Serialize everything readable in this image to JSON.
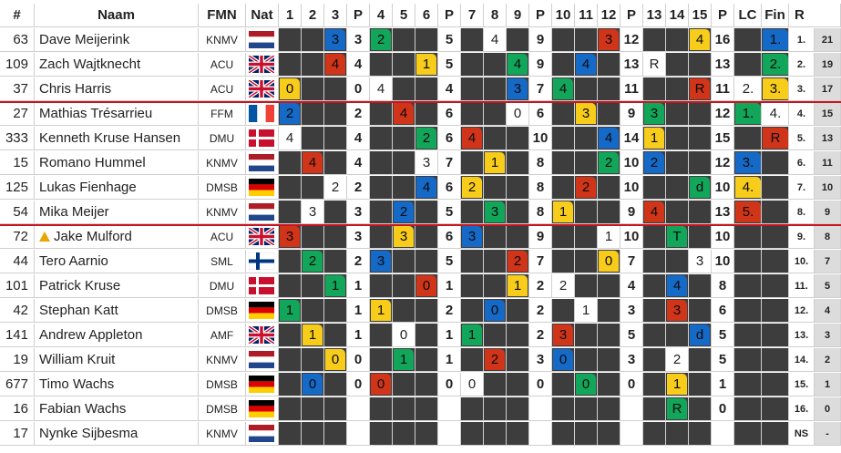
{
  "headers": {
    "num": "#",
    "name": "Naam",
    "fmn": "FMN",
    "nat": "Nat",
    "h1": "1",
    "h2": "2",
    "h3": "3",
    "p1": "P",
    "h4": "4",
    "h5": "5",
    "h6": "6",
    "p2": "P",
    "h7": "7",
    "h8": "8",
    "h9": "9",
    "p3": "P",
    "h10": "10",
    "h11": "11",
    "h12": "12",
    "p4": "P",
    "h13": "13",
    "h14": "14",
    "h15": "15",
    "p5": "P",
    "lc": "LC",
    "fin": "Fin",
    "rank": "R"
  },
  "colors": {
    "blue": "#1569c7",
    "green": "#12a65a",
    "yellow": "#f8cc1b",
    "red": "#d0351a",
    "dark": "#3d3d3d",
    "separator": "#c8141e"
  },
  "rows": [
    {
      "num": "63",
      "name": "Dave Meijerink",
      "fmn": "KNMV",
      "nat": "nl",
      "heats": [
        null,
        null,
        [
          "3",
          "blue"
        ],
        "3",
        [
          "2",
          "green"
        ],
        null,
        null,
        "5",
        null,
        [
          "4",
          "white"
        ],
        null,
        "9",
        null,
        null,
        [
          "3",
          "red"
        ],
        "12",
        null,
        null,
        [
          "4",
          "yellow"
        ],
        "16"
      ],
      "lc": [
        "",
        "dark"
      ],
      "fin": [
        "1.",
        "blue"
      ],
      "place": "1.",
      "pts": "21"
    },
    {
      "num": "109",
      "name": "Zach Wajtknecht",
      "fmn": "ACU",
      "nat": "gb",
      "heats": [
        null,
        null,
        [
          "4",
          "red"
        ],
        "4",
        null,
        null,
        [
          "1",
          "yellow"
        ],
        "5",
        null,
        null,
        [
          "4",
          "green"
        ],
        "9",
        null,
        [
          "4",
          "blue"
        ],
        null,
        "13",
        [
          "R",
          "white"
        ],
        null,
        null,
        "13"
      ],
      "lc": [
        "",
        "dark"
      ],
      "fin": [
        "2.",
        "green"
      ],
      "place": "2.",
      "pts": "19"
    },
    {
      "num": "37",
      "name": "Chris Harris",
      "fmn": "ACU",
      "nat": "gb",
      "heats": [
        [
          "0",
          "yellow"
        ],
        null,
        null,
        "0",
        [
          "4",
          "white"
        ],
        null,
        null,
        "4",
        null,
        null,
        [
          "3",
          "blue"
        ],
        "7",
        [
          "4",
          "green"
        ],
        null,
        null,
        "11",
        null,
        null,
        [
          "R",
          "red"
        ],
        "11"
      ],
      "lc": [
        "2.",
        "white"
      ],
      "fin": [
        "3.",
        "yellow"
      ],
      "place": "3.",
      "pts": "17"
    },
    {
      "num": "27",
      "name": "Mathias Trésarrieu",
      "fmn": "FFM",
      "nat": "fr",
      "heats": [
        [
          "2",
          "blue"
        ],
        null,
        null,
        "2",
        null,
        [
          "4",
          "red"
        ],
        null,
        "6",
        null,
        null,
        [
          "0",
          "white"
        ],
        "6",
        null,
        [
          "3",
          "yellow"
        ],
        null,
        "9",
        [
          "3",
          "green"
        ],
        null,
        null,
        "12"
      ],
      "lc": [
        "1.",
        "green"
      ],
      "fin": [
        "4.",
        "white"
      ],
      "place": "4.",
      "pts": "15"
    },
    {
      "num": "333",
      "name": "Kenneth Kruse Hansen",
      "fmn": "DMU",
      "nat": "dk",
      "heats": [
        [
          "4",
          "white"
        ],
        null,
        null,
        "4",
        null,
        null,
        [
          "2",
          "green"
        ],
        "6",
        [
          "4",
          "red"
        ],
        null,
        null,
        "10",
        null,
        null,
        [
          "4",
          "blue"
        ],
        "14",
        [
          "1",
          "yellow"
        ],
        null,
        null,
        "15"
      ],
      "lc": [
        "",
        "dark"
      ],
      "fin": [
        "R",
        "red"
      ],
      "place": "5.",
      "pts": "13"
    },
    {
      "num": "15",
      "name": "Romano Hummel",
      "fmn": "KNMV",
      "nat": "nl",
      "heats": [
        null,
        [
          "4",
          "red"
        ],
        null,
        "4",
        null,
        null,
        [
          "3",
          "white"
        ],
        "7",
        null,
        [
          "1",
          "yellow"
        ],
        null,
        "8",
        null,
        null,
        [
          "2",
          "green"
        ],
        "10",
        [
          "2",
          "blue"
        ],
        null,
        null,
        "12"
      ],
      "lc": [
        "3.",
        "blue"
      ],
      "fin": [
        "",
        "dark"
      ],
      "place": "6.",
      "pts": "11"
    },
    {
      "num": "125",
      "name": "Lukas Fienhage",
      "fmn": "DMSB",
      "nat": "de",
      "heats": [
        null,
        null,
        [
          "2",
          "white"
        ],
        "2",
        null,
        null,
        [
          "4",
          "blue"
        ],
        "6",
        [
          "2",
          "yellow"
        ],
        null,
        null,
        "8",
        null,
        [
          "2",
          "red"
        ],
        null,
        "10",
        null,
        null,
        [
          "d",
          "green"
        ],
        "10"
      ],
      "lc": [
        "4.",
        "yellow"
      ],
      "fin": [
        "",
        "dark"
      ],
      "place": "7.",
      "pts": "10"
    },
    {
      "num": "54",
      "name": "Mika Meijer",
      "fmn": "KNMV",
      "nat": "nl",
      "heats": [
        null,
        [
          "3",
          "white"
        ],
        null,
        "3",
        null,
        [
          "2",
          "blue"
        ],
        null,
        "5",
        null,
        [
          "3",
          "green"
        ],
        null,
        "8",
        [
          "1",
          "yellow"
        ],
        null,
        null,
        "9",
        [
          "4",
          "red"
        ],
        null,
        null,
        "13"
      ],
      "lc": [
        "5.",
        "red"
      ],
      "fin": [
        "",
        "dark"
      ],
      "place": "8.",
      "pts": "9"
    },
    {
      "num": "72",
      "name": "Jake Mulford",
      "warn": true,
      "fmn": "ACU",
      "nat": "gb",
      "heats": [
        [
          "3",
          "red"
        ],
        null,
        null,
        "3",
        null,
        [
          "3",
          "yellow"
        ],
        null,
        "6",
        [
          "3",
          "blue"
        ],
        null,
        null,
        "9",
        null,
        null,
        [
          "1",
          "white"
        ],
        "10",
        null,
        [
          "T",
          "green"
        ],
        null,
        "10"
      ],
      "lc": [
        "",
        "dark"
      ],
      "fin": [
        "",
        "dark"
      ],
      "place": "9.",
      "pts": "8"
    },
    {
      "num": "44",
      "name": "Tero Aarnio",
      "fmn": "SML",
      "nat": "fi",
      "heats": [
        null,
        [
          "2",
          "green"
        ],
        null,
        "2",
        [
          "3",
          "blue"
        ],
        null,
        null,
        "5",
        null,
        null,
        [
          "2",
          "red"
        ],
        "7",
        null,
        null,
        [
          "0",
          "yellow"
        ],
        "7",
        null,
        null,
        [
          "3",
          "white"
        ],
        "10"
      ],
      "lc": [
        "",
        "dark"
      ],
      "fin": [
        "",
        "dark"
      ],
      "place": "10.",
      "pts": "7"
    },
    {
      "num": "101",
      "name": "Patrick Kruse",
      "fmn": "DMU",
      "nat": "dk",
      "heats": [
        null,
        null,
        [
          "1",
          "green"
        ],
        "1",
        null,
        null,
        [
          "0",
          "red"
        ],
        "1",
        null,
        null,
        [
          "1",
          "yellow"
        ],
        "2",
        [
          "2",
          "white"
        ],
        null,
        null,
        "4",
        null,
        [
          "4",
          "blue"
        ],
        null,
        "8"
      ],
      "lc": [
        "",
        "dark"
      ],
      "fin": [
        "",
        "dark"
      ],
      "place": "11.",
      "pts": "5"
    },
    {
      "num": "42",
      "name": "Stephan Katt",
      "fmn": "DMSB",
      "nat": "de",
      "heats": [
        [
          "1",
          "green"
        ],
        null,
        null,
        "1",
        [
          "1",
          "yellow"
        ],
        null,
        null,
        "2",
        null,
        [
          "0",
          "blue"
        ],
        null,
        "2",
        null,
        [
          "1",
          "white"
        ],
        null,
        "3",
        null,
        [
          "3",
          "red"
        ],
        null,
        "6"
      ],
      "lc": [
        "",
        "dark"
      ],
      "fin": [
        "",
        "dark"
      ],
      "place": "12.",
      "pts": "4"
    },
    {
      "num": "141",
      "name": "Andrew Appleton",
      "fmn": "AMF",
      "nat": "gb",
      "heats": [
        null,
        [
          "1",
          "yellow"
        ],
        null,
        "1",
        null,
        [
          "0",
          "white"
        ],
        null,
        "1",
        [
          "1",
          "green"
        ],
        null,
        null,
        "2",
        [
          "3",
          "red"
        ],
        null,
        null,
        "5",
        null,
        null,
        [
          "d",
          "blue"
        ],
        "5"
      ],
      "lc": [
        "",
        "dark"
      ],
      "fin": [
        "",
        "dark"
      ],
      "place": "13.",
      "pts": "3"
    },
    {
      "num": "19",
      "name": "William Kruit",
      "fmn": "KNMV",
      "nat": "nl",
      "heats": [
        null,
        null,
        [
          "0",
          "yellow"
        ],
        "0",
        null,
        [
          "1",
          "green"
        ],
        null,
        "1",
        null,
        [
          "2",
          "red"
        ],
        null,
        "3",
        [
          "0",
          "blue"
        ],
        null,
        null,
        "3",
        null,
        [
          "2",
          "white"
        ],
        null,
        "5"
      ],
      "lc": [
        "",
        "dark"
      ],
      "fin": [
        "",
        "dark"
      ],
      "place": "14.",
      "pts": "2"
    },
    {
      "num": "677",
      "name": "Timo Wachs",
      "fmn": "DMSB",
      "nat": "de",
      "heats": [
        null,
        [
          "0",
          "blue"
        ],
        null,
        "0",
        [
          "0",
          "red"
        ],
        null,
        null,
        "0",
        [
          "0",
          "white"
        ],
        null,
        null,
        "0",
        null,
        [
          "0",
          "green"
        ],
        null,
        "0",
        null,
        [
          "1",
          "yellow"
        ],
        null,
        "1"
      ],
      "lc": [
        "",
        "dark"
      ],
      "fin": [
        "",
        "dark"
      ],
      "place": "15.",
      "pts": "1"
    },
    {
      "num": "16",
      "name": "Fabian Wachs",
      "fmn": "DMSB",
      "nat": "de",
      "heats": [
        null,
        null,
        null,
        "",
        null,
        null,
        null,
        "",
        null,
        null,
        null,
        "",
        null,
        null,
        null,
        "",
        null,
        [
          "R",
          "green"
        ],
        null,
        "0"
      ],
      "lc": [
        "",
        "dark"
      ],
      "fin": [
        "",
        "dark"
      ],
      "place": "16.",
      "pts": "0"
    },
    {
      "num": "17",
      "name": "Nynke Sijbesma",
      "fmn": "KNMV",
      "nat": "nl",
      "heats": [
        null,
        null,
        null,
        "",
        null,
        null,
        null,
        "",
        null,
        null,
        null,
        "",
        null,
        null,
        null,
        "",
        null,
        null,
        null,
        ""
      ],
      "lc": [
        "",
        "dark"
      ],
      "fin": [
        "",
        "dark"
      ],
      "place": "NS",
      "pts": "-"
    }
  ]
}
